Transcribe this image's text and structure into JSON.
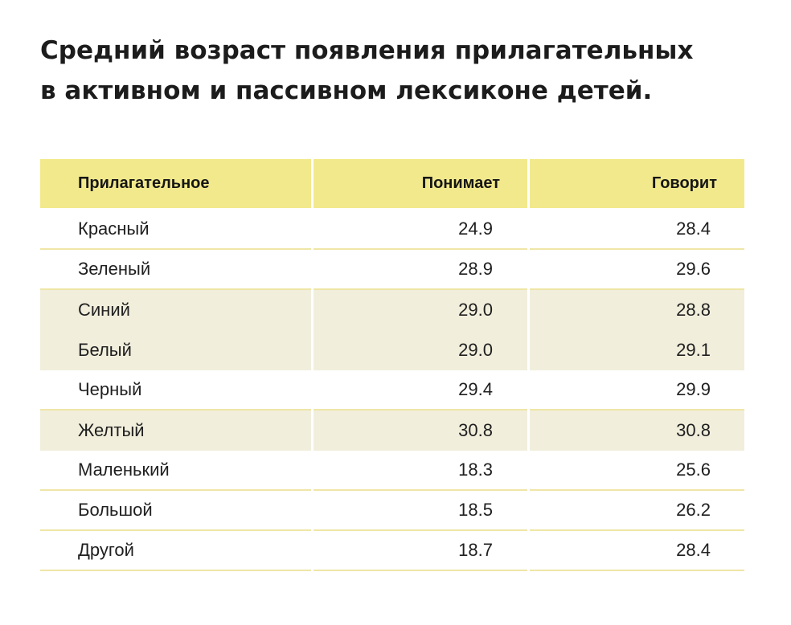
{
  "title": {
    "line1": "Средний возраст появления прилагательных",
    "line2": "в активном и пассивном лексиконе детей."
  },
  "table": {
    "headers": [
      "Прилагательное",
      "Понимает",
      "Говорит"
    ],
    "rows": [
      {
        "adjective": "Красный",
        "understands": "24.9",
        "speaks": "28.4"
      },
      {
        "adjective": "Зеленый",
        "understands": "28.9",
        "speaks": "29.6"
      },
      {
        "adjective": "Синий",
        "understands": "29.0",
        "speaks": "28.8"
      },
      {
        "adjective": "Белый",
        "understands": "29.0",
        "speaks": "29.1"
      },
      {
        "adjective": "Черный",
        "understands": "29.4",
        "speaks": "29.9"
      },
      {
        "adjective": "Желтый",
        "understands": "30.8",
        "speaks": "30.8"
      },
      {
        "adjective": "Маленький",
        "understands": "18.3",
        "speaks": "25.6"
      },
      {
        "adjective": "Большой",
        "understands": "18.5",
        "speaks": "26.2"
      },
      {
        "adjective": "Другой",
        "understands": "18.7",
        "speaks": "28.4"
      }
    ]
  },
  "colors": {
    "header_bg": "#f2e98c",
    "shaded_row_bg": "#f1eedc",
    "divider": "#efe6a6",
    "text": "#1f1f1f"
  }
}
